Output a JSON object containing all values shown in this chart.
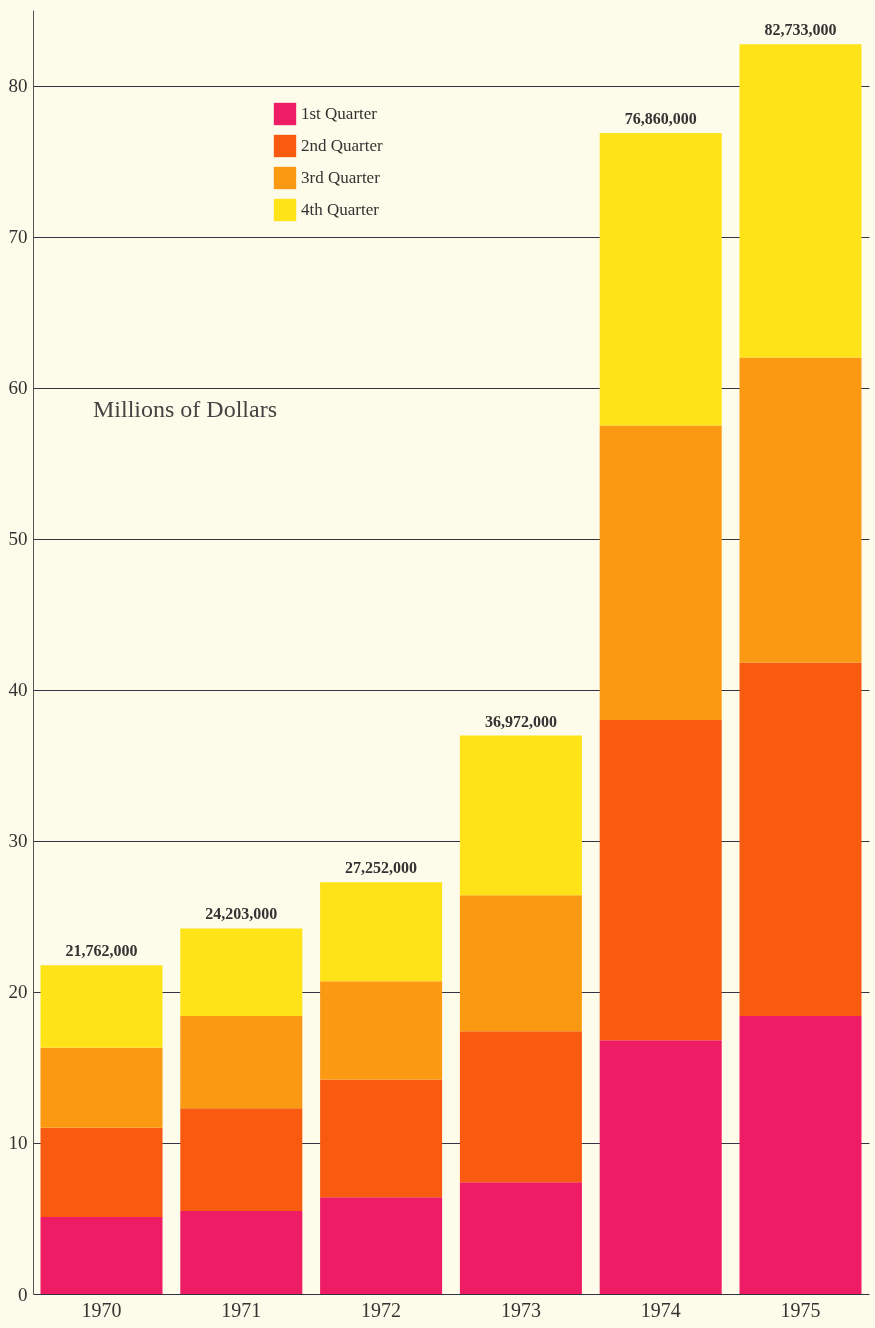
{
  "chart_data": {
    "type": "bar",
    "stacked": true,
    "ylabel": "Millions of Dollars",
    "categories": [
      "1970",
      "1971",
      "1972",
      "1973",
      "1974",
      "1975"
    ],
    "series": [
      {
        "name": "1st  Quarter",
        "color": "#ee1c64",
        "values": [
          5.1,
          5.5,
          6.4,
          7.4,
          16.8,
          18.4
        ]
      },
      {
        "name": "2nd Quarter",
        "color": "#f85a10",
        "values": [
          5.9,
          6.8,
          7.8,
          10.0,
          21.2,
          23.4
        ]
      },
      {
        "name": "3rd  Quarter",
        "color": "#fb9a12",
        "values": [
          5.3,
          6.1,
          6.5,
          9.0,
          19.5,
          20.2
        ]
      },
      {
        "name": "4th  Quarter",
        "color": "#fde318",
        "values": [
          5.462,
          5.803,
          6.552,
          10.572,
          19.36,
          20.733
        ]
      }
    ],
    "annotations": [
      {
        "text": "21,762,000",
        "x": "1970",
        "y": 21.762
      },
      {
        "text": "24,203,000",
        "x": "1971",
        "y": 24.203
      },
      {
        "text": "27,252,000",
        "x": "1972",
        "y": 27.252
      },
      {
        "text": "36,972,000",
        "x": "1973",
        "y": 36.972
      },
      {
        "text": "76,860,000",
        "x": "1974",
        "y": 76.86
      },
      {
        "text": "82,733,000",
        "x": "1975",
        "y": 82.733
      }
    ],
    "ylim": [
      0,
      85
    ],
    "yticks": [
      0,
      10,
      20,
      30,
      40,
      50,
      60,
      70,
      80
    ],
    "grid": "y",
    "legend": "top left"
  }
}
